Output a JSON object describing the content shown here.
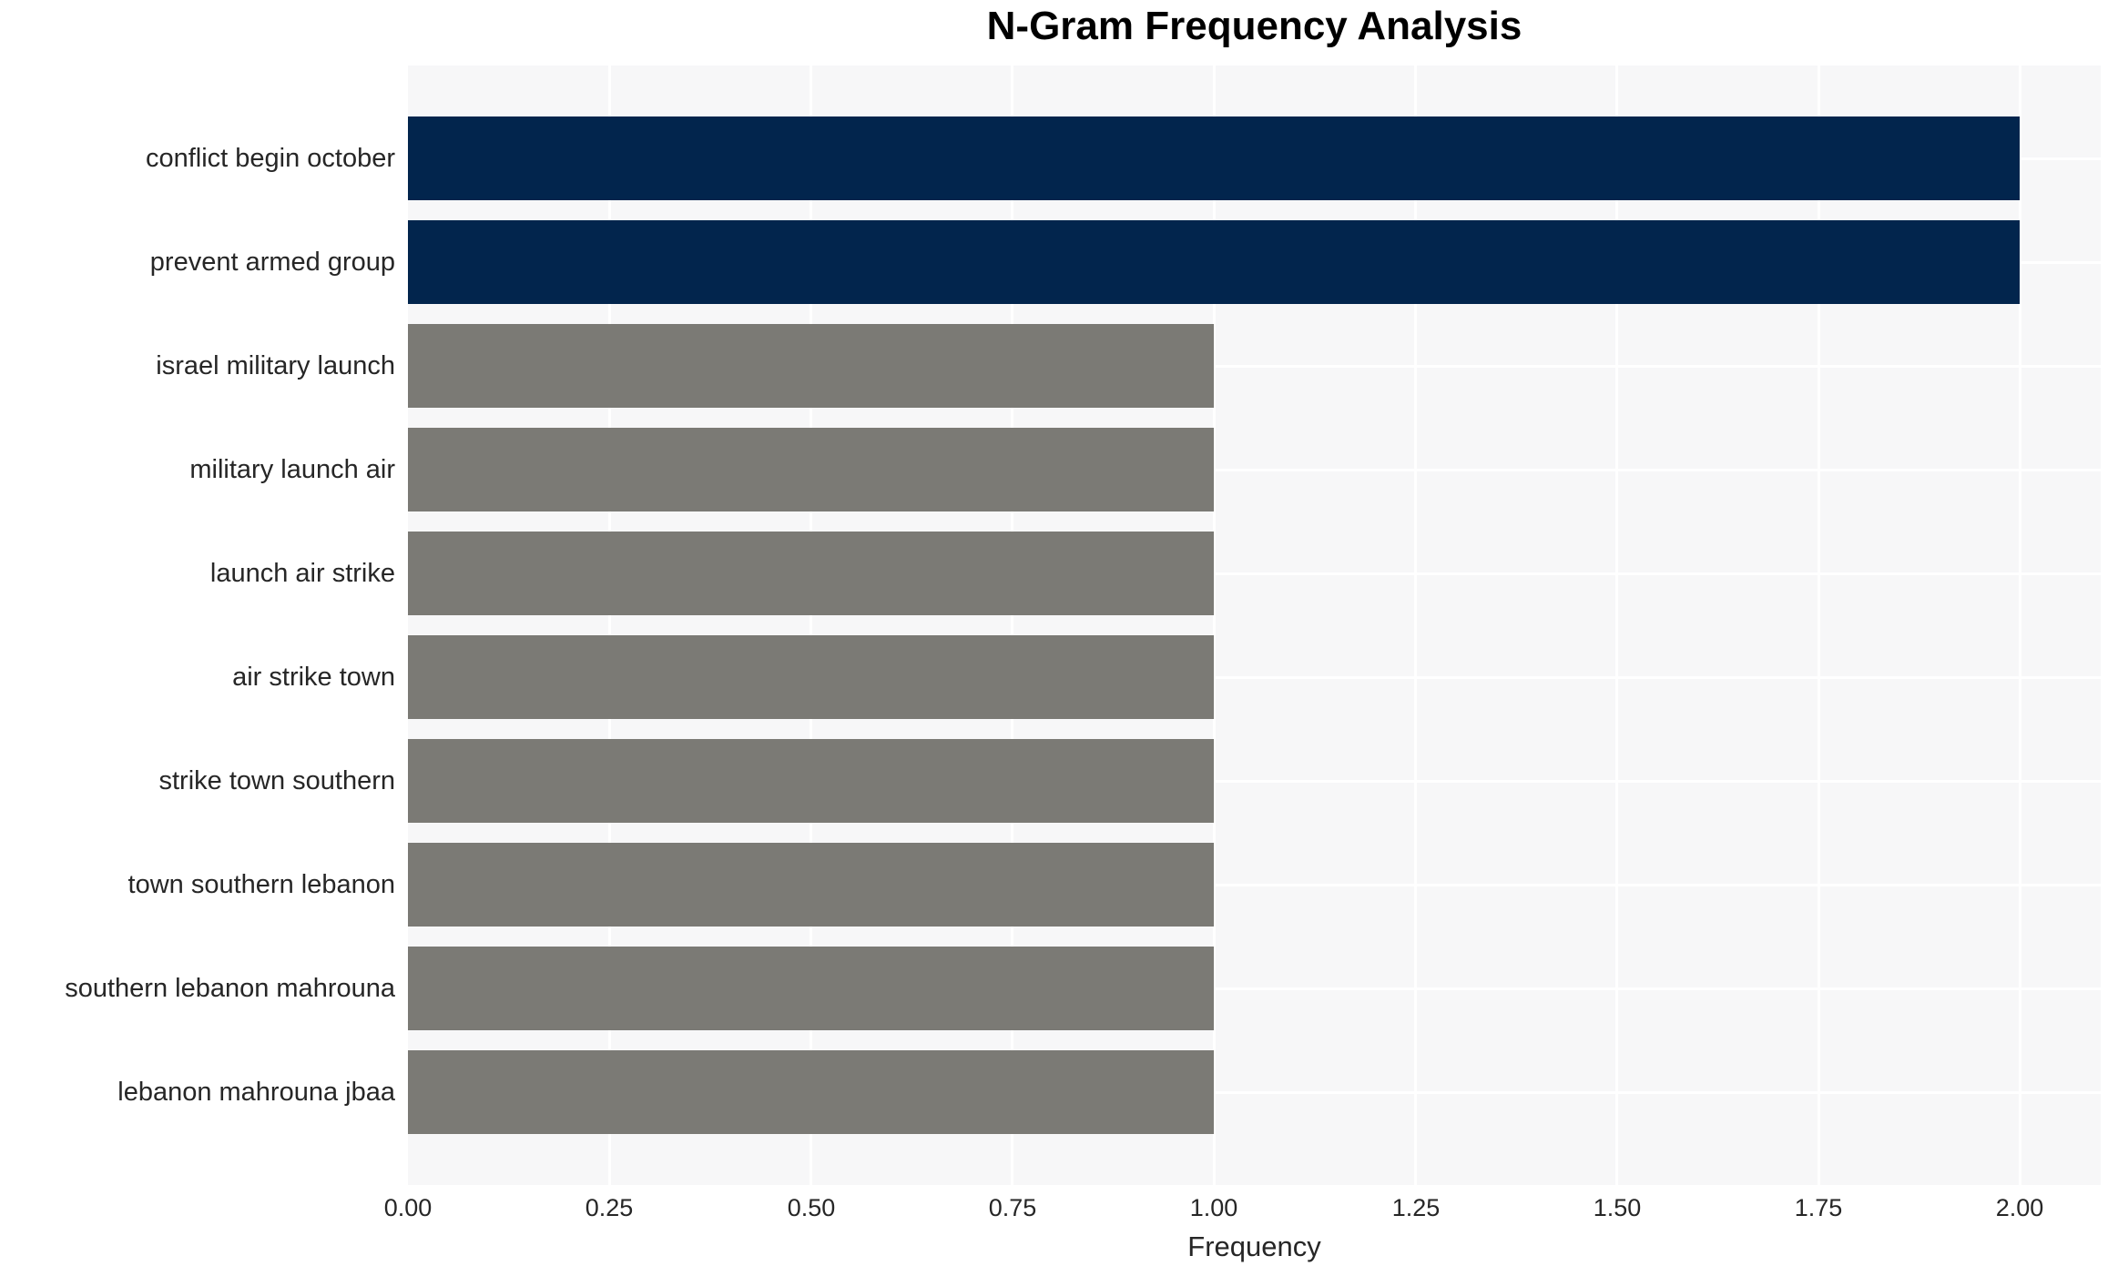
{
  "chart_data": {
    "type": "bar",
    "orientation": "horizontal",
    "title": "N-Gram Frequency Analysis",
    "xlabel": "Frequency",
    "ylabel": "",
    "categories": [
      "conflict begin october",
      "prevent armed group",
      "israel military launch",
      "military launch air",
      "launch air strike",
      "air strike town",
      "strike town southern",
      "town southern lebanon",
      "southern lebanon mahrouna",
      "lebanon mahrouna jbaa"
    ],
    "values": [
      2,
      2,
      1,
      1,
      1,
      1,
      1,
      1,
      1,
      1
    ],
    "bar_colors": [
      "#02254d",
      "#02254d",
      "#7b7a75",
      "#7b7a75",
      "#7b7a75",
      "#7b7a75",
      "#7b7a75",
      "#7b7a75",
      "#7b7a75",
      "#7b7a75"
    ],
    "xlim": [
      0,
      2.1
    ],
    "xticks": [
      "0.00",
      "0.25",
      "0.50",
      "0.75",
      "1.00",
      "1.25",
      "1.50",
      "1.75",
      "2.00"
    ],
    "xtick_values": [
      0,
      0.25,
      0.5,
      0.75,
      1.0,
      1.25,
      1.5,
      1.75,
      2.0
    ],
    "grid": true,
    "legend": false,
    "colors": {
      "highlight_bar": "#02254d",
      "default_bar": "#7b7a75",
      "plot_background": "#f7f7f8",
      "gridline": "#ffffff",
      "figure_background": "#ffffff",
      "text": "#262626",
      "title_text": "#000000"
    }
  }
}
